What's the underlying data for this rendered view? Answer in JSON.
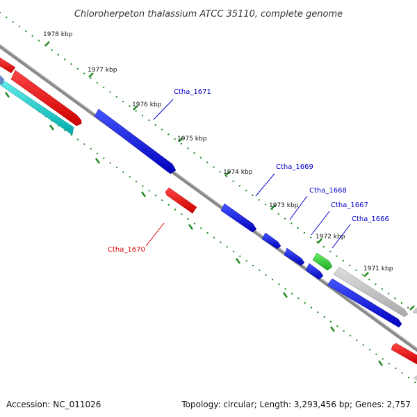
{
  "title": "Chloroherpeton thalassium ATCC 35110, complete genome",
  "accession_label": "Accession: NC_011026",
  "summary_label": "Topology: circular; Length: 3,293,456 bp; Genes: 2,757",
  "ticks": [
    "1978 kbp",
    "1977 kbp",
    "1976 kbp",
    "1975 kbp",
    "1974 kbp",
    "1973 kbp",
    "1972 kbp",
    "1971 kbp"
  ],
  "gene_labels": {
    "ctha_1671": "Ctha_1671",
    "ctha_1669": "Ctha_1669",
    "ctha_1668": "Ctha_1668",
    "ctha_1667": "Ctha_1667",
    "ctha_1666": "Ctha_1666",
    "ctha_1670": "Ctha_1670"
  },
  "colors": {
    "forward_gene": "#0000dd",
    "reverse_gene": "#ee0000",
    "rna_gene": "#00cccc",
    "pseudo_gene": "#bbbbbb",
    "highlight_gene": "#33cc33",
    "tick": "#228822",
    "backbone": "#777777",
    "forward_label": "#0000cc",
    "reverse_label": "#dd0000"
  }
}
